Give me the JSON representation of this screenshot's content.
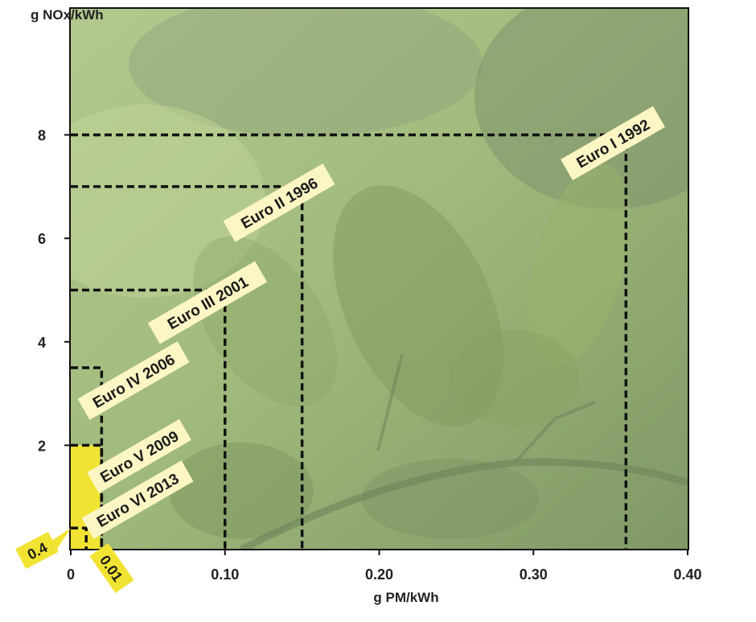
{
  "chart_data": {
    "type": "step-limits",
    "ylabel": "g NOx/kWh",
    "xlabel": "g PM/kWh",
    "xlim": [
      0,
      0.4
    ],
    "ylim": [
      0,
      10
    ],
    "x_ticks": [
      {
        "value": 0,
        "label": "0"
      },
      {
        "value": 0.1,
        "label": "0.10"
      },
      {
        "value": 0.2,
        "label": "0.20"
      },
      {
        "value": 0.3,
        "label": "0.30"
      },
      {
        "value": 0.4,
        "label": "0.40"
      }
    ],
    "y_ticks": [
      {
        "value": 2,
        "label": "2"
      },
      {
        "value": 4,
        "label": "4"
      },
      {
        "value": 6,
        "label": "6"
      },
      {
        "value": 8,
        "label": "8"
      }
    ],
    "series": [
      {
        "name": "Euro I 1992",
        "pm": 0.36,
        "nox": 8.0
      },
      {
        "name": "Euro II 1996",
        "pm": 0.15,
        "nox": 7.0
      },
      {
        "name": "Euro III 2001",
        "pm": 0.1,
        "nox": 5.0
      },
      {
        "name": "Euro IV 2006",
        "pm": 0.02,
        "nox": 3.5
      },
      {
        "name": "Euro V 2009",
        "pm": 0.02,
        "nox": 2.0
      },
      {
        "name": "Euro VI 2013",
        "pm": 0.01,
        "nox": 0.4
      }
    ],
    "annotations": {
      "nox_value": "0.4",
      "pm_value": "0.01"
    },
    "grid": false,
    "legend": "inline-labels",
    "colors": {
      "label_bg": "#fbf6c4",
      "highlight": "#f1e332",
      "line": "#111111",
      "background": "#9db27a"
    }
  }
}
